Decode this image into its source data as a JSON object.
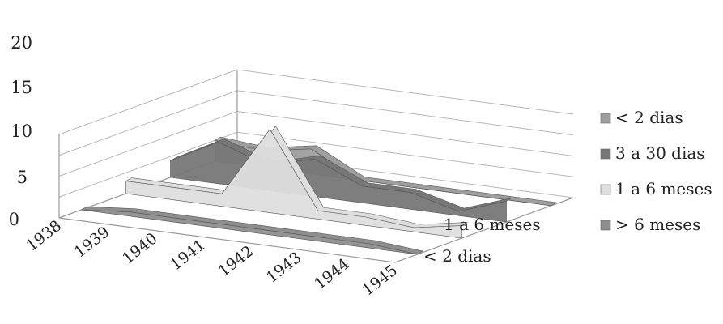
{
  "chart_data": {
    "type": "area",
    "three_d": true,
    "title": "",
    "xlabel": "",
    "ylabel": "",
    "ylim": [
      0,
      20
    ],
    "yticks": [
      "0",
      "5",
      "10",
      "15",
      "20"
    ],
    "categories": [
      "1938",
      "1939",
      "1940",
      "1941",
      "1942",
      "1943",
      "1944",
      "1945"
    ],
    "depth_labels": [
      "1 a 6 meses",
      "< 2 dias"
    ],
    "grid": true,
    "legend_position": "right",
    "series": [
      {
        "name": "< 2 dias",
        "color": "#9e9e9e",
        "values": [
          5,
          4,
          6,
          0,
          0,
          0,
          0,
          0
        ]
      },
      {
        "name": "3 a 30 dias",
        "color": "#777777",
        "values": [
          4,
          10,
          6,
          9,
          4,
          4,
          1,
          5
        ]
      },
      {
        "name": "1 a 6 meses",
        "color": "#dedede",
        "values": [
          3,
          3,
          3,
          20,
          2,
          2,
          1,
          3
        ]
      },
      {
        "name": "> 6 meses",
        "color": "#8e8e8e",
        "values": [
          0,
          1,
          1,
          1,
          1,
          1,
          1,
          0
        ]
      }
    ]
  }
}
